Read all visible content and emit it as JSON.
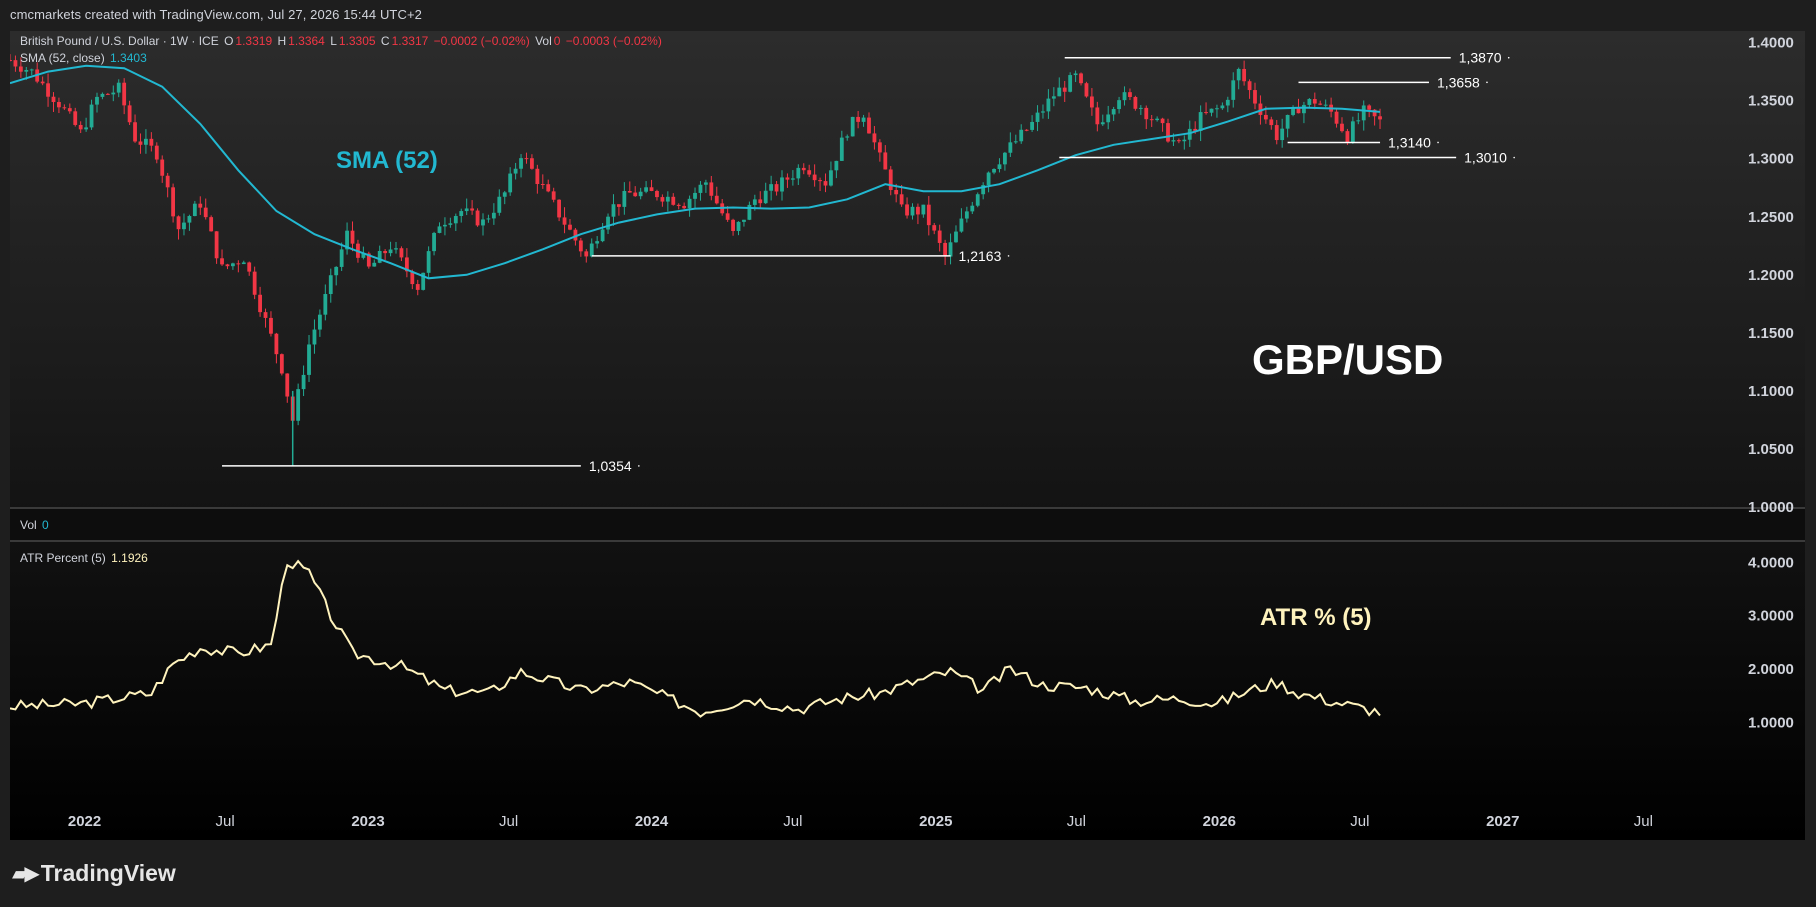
{
  "header": "cmcmarkets created with TradingView.com, Jul 27, 2026 15:44 UTC+2",
  "legend": {
    "symbol": "British Pound / U.S. Dollar · 1W · ICE",
    "o_label": "O",
    "o_value": "1.3319",
    "h_label": "H",
    "h_value": "1.3364",
    "l_label": "L",
    "l_value": "1.3305",
    "c_label": "C",
    "c_value": "1.3317",
    "change": "−0.0002 (−0.02%)",
    "vol_label": "Vol",
    "vol_value": "0",
    "vol_change": "−0.0003 (−0.02%)",
    "sma_label": "SMA (52, close)",
    "sma_value": "1.3403",
    "vol_pane_label": "Vol",
    "vol_pane_value": "0",
    "atr_label": "ATR Percent (5)",
    "atr_value": "1.1926"
  },
  "annotations": {
    "sma_title": "SMA (52)",
    "pair_title": "GBP/USD",
    "atr_title": "ATR % (5)"
  },
  "brand": "TradingView",
  "colors": {
    "up": "#22ab94",
    "down": "#f23645",
    "sma": "#22b8d1",
    "atr": "#fff3bd",
    "level_line": "#ffffff",
    "axis_text": "#d1d4dc"
  },
  "chart_data": [
    {
      "type": "candlestick",
      "timeframe": "1W",
      "x_ticks": [
        "2022",
        "Jul",
        "2023",
        "Jul",
        "2024",
        "Jul",
        "2025",
        "Jul",
        "2026",
        "Jul",
        "2027",
        "Jul"
      ],
      "y_ticks": [
        "1.4000",
        "1.3500",
        "1.3000",
        "1.2500",
        "1.2000",
        "1.1500",
        "1.1000",
        "1.0500",
        "1.0000"
      ],
      "ylim": [
        1.0,
        1.41
      ],
      "close_path": [
        [
          "2021-09-27",
          1.385
        ],
        [
          "2021-10-25",
          1.375
        ],
        [
          "2021-11-29",
          1.348
        ],
        [
          "2021-12-27",
          1.322
        ],
        [
          "2022-01-17",
          1.352
        ],
        [
          "2022-02-14",
          1.36
        ],
        [
          "2022-03-07",
          1.318
        ],
        [
          "2022-04-04",
          1.305
        ],
        [
          "2022-05-02",
          1.24
        ],
        [
          "2022-05-30",
          1.262
        ],
        [
          "2022-06-27",
          1.205
        ],
        [
          "2022-07-25",
          1.215
        ],
        [
          "2022-08-22",
          1.16
        ],
        [
          "2022-09-12",
          1.12
        ],
        [
          "2022-09-26",
          1.075
        ],
        [
          "2022-10-17",
          1.14
        ],
        [
          "2022-11-07",
          1.18
        ],
        [
          "2022-12-05",
          1.235
        ],
        [
          "2023-01-02",
          1.205
        ],
        [
          "2023-01-30",
          1.225
        ],
        [
          "2023-03-06",
          1.19
        ],
        [
          "2023-04-03",
          1.245
        ],
        [
          "2023-05-01",
          1.255
        ],
        [
          "2023-05-29",
          1.245
        ],
        [
          "2023-06-26",
          1.27
        ],
        [
          "2023-07-17",
          1.305
        ],
        [
          "2023-08-14",
          1.275
        ],
        [
          "2023-09-11",
          1.245
        ],
        [
          "2023-10-09",
          1.215
        ],
        [
          "2023-11-06",
          1.255
        ],
        [
          "2023-12-04",
          1.27
        ],
        [
          "2024-01-08",
          1.27
        ],
        [
          "2024-02-12",
          1.262
        ],
        [
          "2024-03-11",
          1.28
        ],
        [
          "2024-04-15",
          1.235
        ],
        [
          "2024-05-13",
          1.265
        ],
        [
          "2024-06-10",
          1.275
        ],
        [
          "2024-07-15",
          1.295
        ],
        [
          "2024-08-12",
          1.28
        ],
        [
          "2024-09-09",
          1.325
        ],
        [
          "2024-09-30",
          1.34
        ],
        [
          "2024-10-21",
          1.3
        ],
        [
          "2024-11-18",
          1.255
        ],
        [
          "2024-12-16",
          1.255
        ],
        [
          "2025-01-13",
          1.215
        ],
        [
          "2025-02-10",
          1.255
        ],
        [
          "2025-03-10",
          1.29
        ],
        [
          "2025-04-07",
          1.31
        ],
        [
          "2025-05-05",
          1.33
        ],
        [
          "2025-06-02",
          1.355
        ],
        [
          "2025-06-30",
          1.37
        ],
        [
          "2025-07-28",
          1.33
        ],
        [
          "2025-08-25",
          1.355
        ],
        [
          "2025-09-22",
          1.345
        ],
        [
          "2025-10-20",
          1.325
        ],
        [
          "2025-11-10",
          1.31
        ],
        [
          "2025-12-08",
          1.335
        ],
        [
          "2026-01-05",
          1.345
        ],
        [
          "2026-01-26",
          1.375
        ],
        [
          "2026-02-16",
          1.35
        ],
        [
          "2026-03-16",
          1.32
        ],
        [
          "2026-04-13",
          1.345
        ],
        [
          "2026-05-04",
          1.35
        ],
        [
          "2026-05-25",
          1.34
        ],
        [
          "2026-06-15",
          1.32
        ],
        [
          "2026-07-06",
          1.34
        ],
        [
          "2026-07-27",
          1.3317
        ]
      ],
      "sma52": [
        [
          "2021-09-27",
          1.365
        ],
        [
          "2021-11-15",
          1.375
        ],
        [
          "2022-01-03",
          1.38
        ],
        [
          "2022-02-21",
          1.378
        ],
        [
          "2022-04-11",
          1.362
        ],
        [
          "2022-05-30",
          1.33
        ],
        [
          "2022-07-18",
          1.29
        ],
        [
          "2022-09-05",
          1.255
        ],
        [
          "2022-10-24",
          1.235
        ],
        [
          "2022-12-12",
          1.222
        ],
        [
          "2023-01-30",
          1.21
        ],
        [
          "2023-03-20",
          1.197
        ],
        [
          "2023-05-08",
          1.2
        ],
        [
          "2023-06-26",
          1.21
        ],
        [
          "2023-08-14",
          1.222
        ],
        [
          "2023-10-02",
          1.235
        ],
        [
          "2023-11-20",
          1.245
        ],
        [
          "2024-01-08",
          1.252
        ],
        [
          "2024-02-26",
          1.257
        ],
        [
          "2024-04-15",
          1.258
        ],
        [
          "2024-06-03",
          1.257
        ],
        [
          "2024-07-22",
          1.258
        ],
        [
          "2024-09-09",
          1.265
        ],
        [
          "2024-10-28",
          1.278
        ],
        [
          "2024-12-16",
          1.272
        ],
        [
          "2025-02-03",
          1.272
        ],
        [
          "2025-03-24",
          1.278
        ],
        [
          "2025-05-12",
          1.29
        ],
        [
          "2025-06-30",
          1.303
        ],
        [
          "2025-08-18",
          1.312
        ],
        [
          "2025-10-06",
          1.317
        ],
        [
          "2025-11-24",
          1.322
        ],
        [
          "2026-01-12",
          1.332
        ],
        [
          "2026-03-02",
          1.343
        ],
        [
          "2026-04-20",
          1.344
        ],
        [
          "2026-06-08",
          1.343
        ],
        [
          "2026-07-27",
          1.3403
        ]
      ],
      "levels": [
        {
          "label": "1,3870",
          "value": 1.387,
          "from": "2025-06-16",
          "to": "2026-10-26"
        },
        {
          "label": "1,3658",
          "value": 1.3658,
          "from": "2026-04-13",
          "to": "2026-09-28"
        },
        {
          "label": "1,3140",
          "value": 1.314,
          "from": "2026-03-30",
          "to": "2026-07-27"
        },
        {
          "label": "1,3010",
          "value": 1.301,
          "from": "2025-06-09",
          "to": "2026-11-02"
        },
        {
          "label": "1,2163",
          "value": 1.2163,
          "from": "2023-10-16",
          "to": "2025-01-20"
        },
        {
          "label": "1,0354",
          "value": 1.0354,
          "from": "2022-06-27",
          "to": "2023-10-02"
        }
      ],
      "last_close": 1.3317
    },
    {
      "type": "line",
      "series": [
        {
          "name": "ATR Percent (5)",
          "last": 1.1926
        }
      ],
      "y_ticks": [
        "4.0000",
        "3.0000",
        "2.0000",
        "1.0000"
      ],
      "ylim": [
        0.65,
        4.4
      ],
      "points": [
        [
          "2021-09-27",
          1.3
        ],
        [
          "2021-12-27",
          1.35
        ],
        [
          "2022-03-28",
          1.55
        ],
        [
          "2022-04-25",
          2.1
        ],
        [
          "2022-05-30",
          2.4
        ],
        [
          "2022-07-18",
          2.3
        ],
        [
          "2022-08-29",
          2.45
        ],
        [
          "2022-09-19",
          4.05
        ],
        [
          "2022-10-17",
          3.8
        ],
        [
          "2022-11-14",
          3.0
        ],
        [
          "2022-12-12",
          2.3
        ],
        [
          "2023-02-13",
          2.05
        ],
        [
          "2023-04-10",
          1.6
        ],
        [
          "2023-06-05",
          1.55
        ],
        [
          "2023-07-17",
          1.95
        ],
        [
          "2023-10-02",
          1.6
        ],
        [
          "2023-12-04",
          1.75
        ],
        [
          "2024-01-15",
          1.5
        ],
        [
          "2024-03-04",
          1.2
        ],
        [
          "2024-05-06",
          1.45
        ],
        [
          "2024-07-08",
          1.25
        ],
        [
          "2024-09-02",
          1.45
        ],
        [
          "2024-10-21",
          1.55
        ],
        [
          "2024-12-02",
          1.75
        ],
        [
          "2025-01-20",
          1.95
        ],
        [
          "2025-03-03",
          1.6
        ],
        [
          "2025-04-07",
          2.0
        ],
        [
          "2025-05-19",
          1.7
        ],
        [
          "2025-07-14",
          1.65
        ],
        [
          "2025-09-15",
          1.4
        ],
        [
          "2025-11-10",
          1.45
        ],
        [
          "2025-12-29",
          1.35
        ],
        [
          "2026-02-09",
          1.6
        ],
        [
          "2026-03-16",
          1.75
        ],
        [
          "2026-04-13",
          1.55
        ],
        [
          "2026-05-25",
          1.4
        ],
        [
          "2026-07-27",
          1.1926
        ]
      ]
    }
  ]
}
